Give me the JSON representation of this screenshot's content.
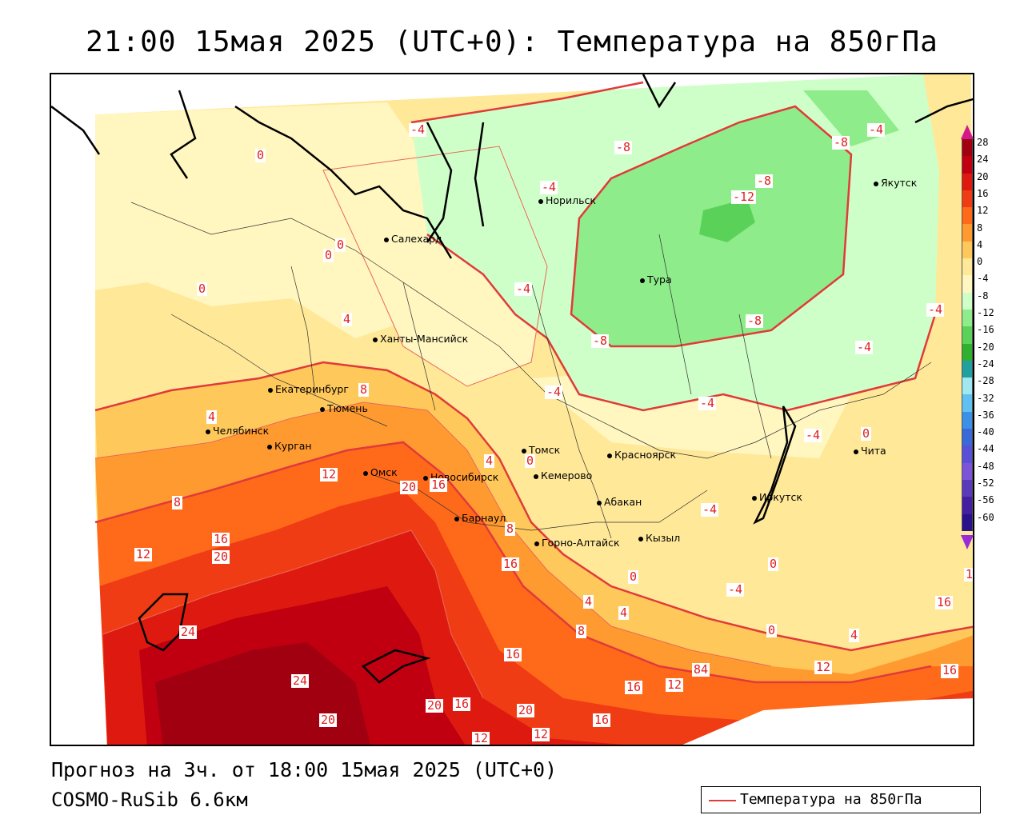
{
  "title": "21:00 15мая 2025 (UTC+0): Температура на 850гПа",
  "forecast_line": "Прогноз на 3ч. от 18:00 15мая 2025 (UTC+0)",
  "model_line": "COSMO-RuSib 6.6км",
  "legend_label": "Температура на 850гПа",
  "colorbar": {
    "labels": [
      "28",
      "24",
      "20",
      "16",
      "12",
      "8",
      "4",
      "0",
      "-4",
      "-8",
      "-12",
      "-16",
      "-20",
      "-24",
      "-28",
      "-32",
      "-36",
      "-40",
      "-44",
      "-48",
      "-52",
      "-56",
      "-60"
    ],
    "colors": [
      "#a00010",
      "#c00010",
      "#de1a10",
      "#f03c14",
      "#ff6a1a",
      "#ff9a30",
      "#ffc85a",
      "#ffe898",
      "#fff6c0",
      "#cfffc8",
      "#8fec8a",
      "#5ad25a",
      "#2fb02f",
      "#22a0a0",
      "#a0e8f0",
      "#60c0f0",
      "#3c90e6",
      "#3a6ad8",
      "#5a50d8",
      "#7c54d8",
      "#5a3ab8",
      "#4420a0",
      "#2a108a"
    ]
  },
  "cities": [
    {
      "name": "Норильск"
    },
    {
      "name": "Якутск"
    },
    {
      "name": "Салехард"
    },
    {
      "name": "Тура"
    },
    {
      "name": "Ханты-Мансийск"
    },
    {
      "name": "Екатеринбург"
    },
    {
      "name": "Тюмень"
    },
    {
      "name": "Челябинск"
    },
    {
      "name": "Курган"
    },
    {
      "name": "Омск"
    },
    {
      "name": "Новосибирск"
    },
    {
      "name": "Томск"
    },
    {
      "name": "Кемерово"
    },
    {
      "name": "Красноярск"
    },
    {
      "name": "Барнаул"
    },
    {
      "name": "Абакан"
    },
    {
      "name": "Иркутск"
    },
    {
      "name": "Чита"
    },
    {
      "name": "Горно-Алтайск"
    },
    {
      "name": "Кызыл"
    }
  ],
  "isotherm_labels": [
    "-4",
    "-8",
    "-8",
    "-4",
    "-12",
    "-8",
    "-4",
    "-4",
    "0",
    "0",
    "0",
    "0",
    "-8",
    "-8",
    "-4",
    "-4",
    "4",
    "8",
    "4",
    "-4",
    "-4",
    "-4",
    "0",
    "12",
    "20",
    "16",
    "4",
    "0",
    "8",
    "8",
    "16",
    "20",
    "12",
    "16",
    "0",
    "-4",
    "0",
    "-4",
    "4",
    "4",
    "8",
    "0",
    "4",
    "16",
    "1",
    "16",
    "24",
    "24",
    "16",
    "20",
    "16",
    "20",
    "16",
    "12",
    "12",
    "16",
    "84",
    "12",
    "16",
    "20",
    "12"
  ]
}
